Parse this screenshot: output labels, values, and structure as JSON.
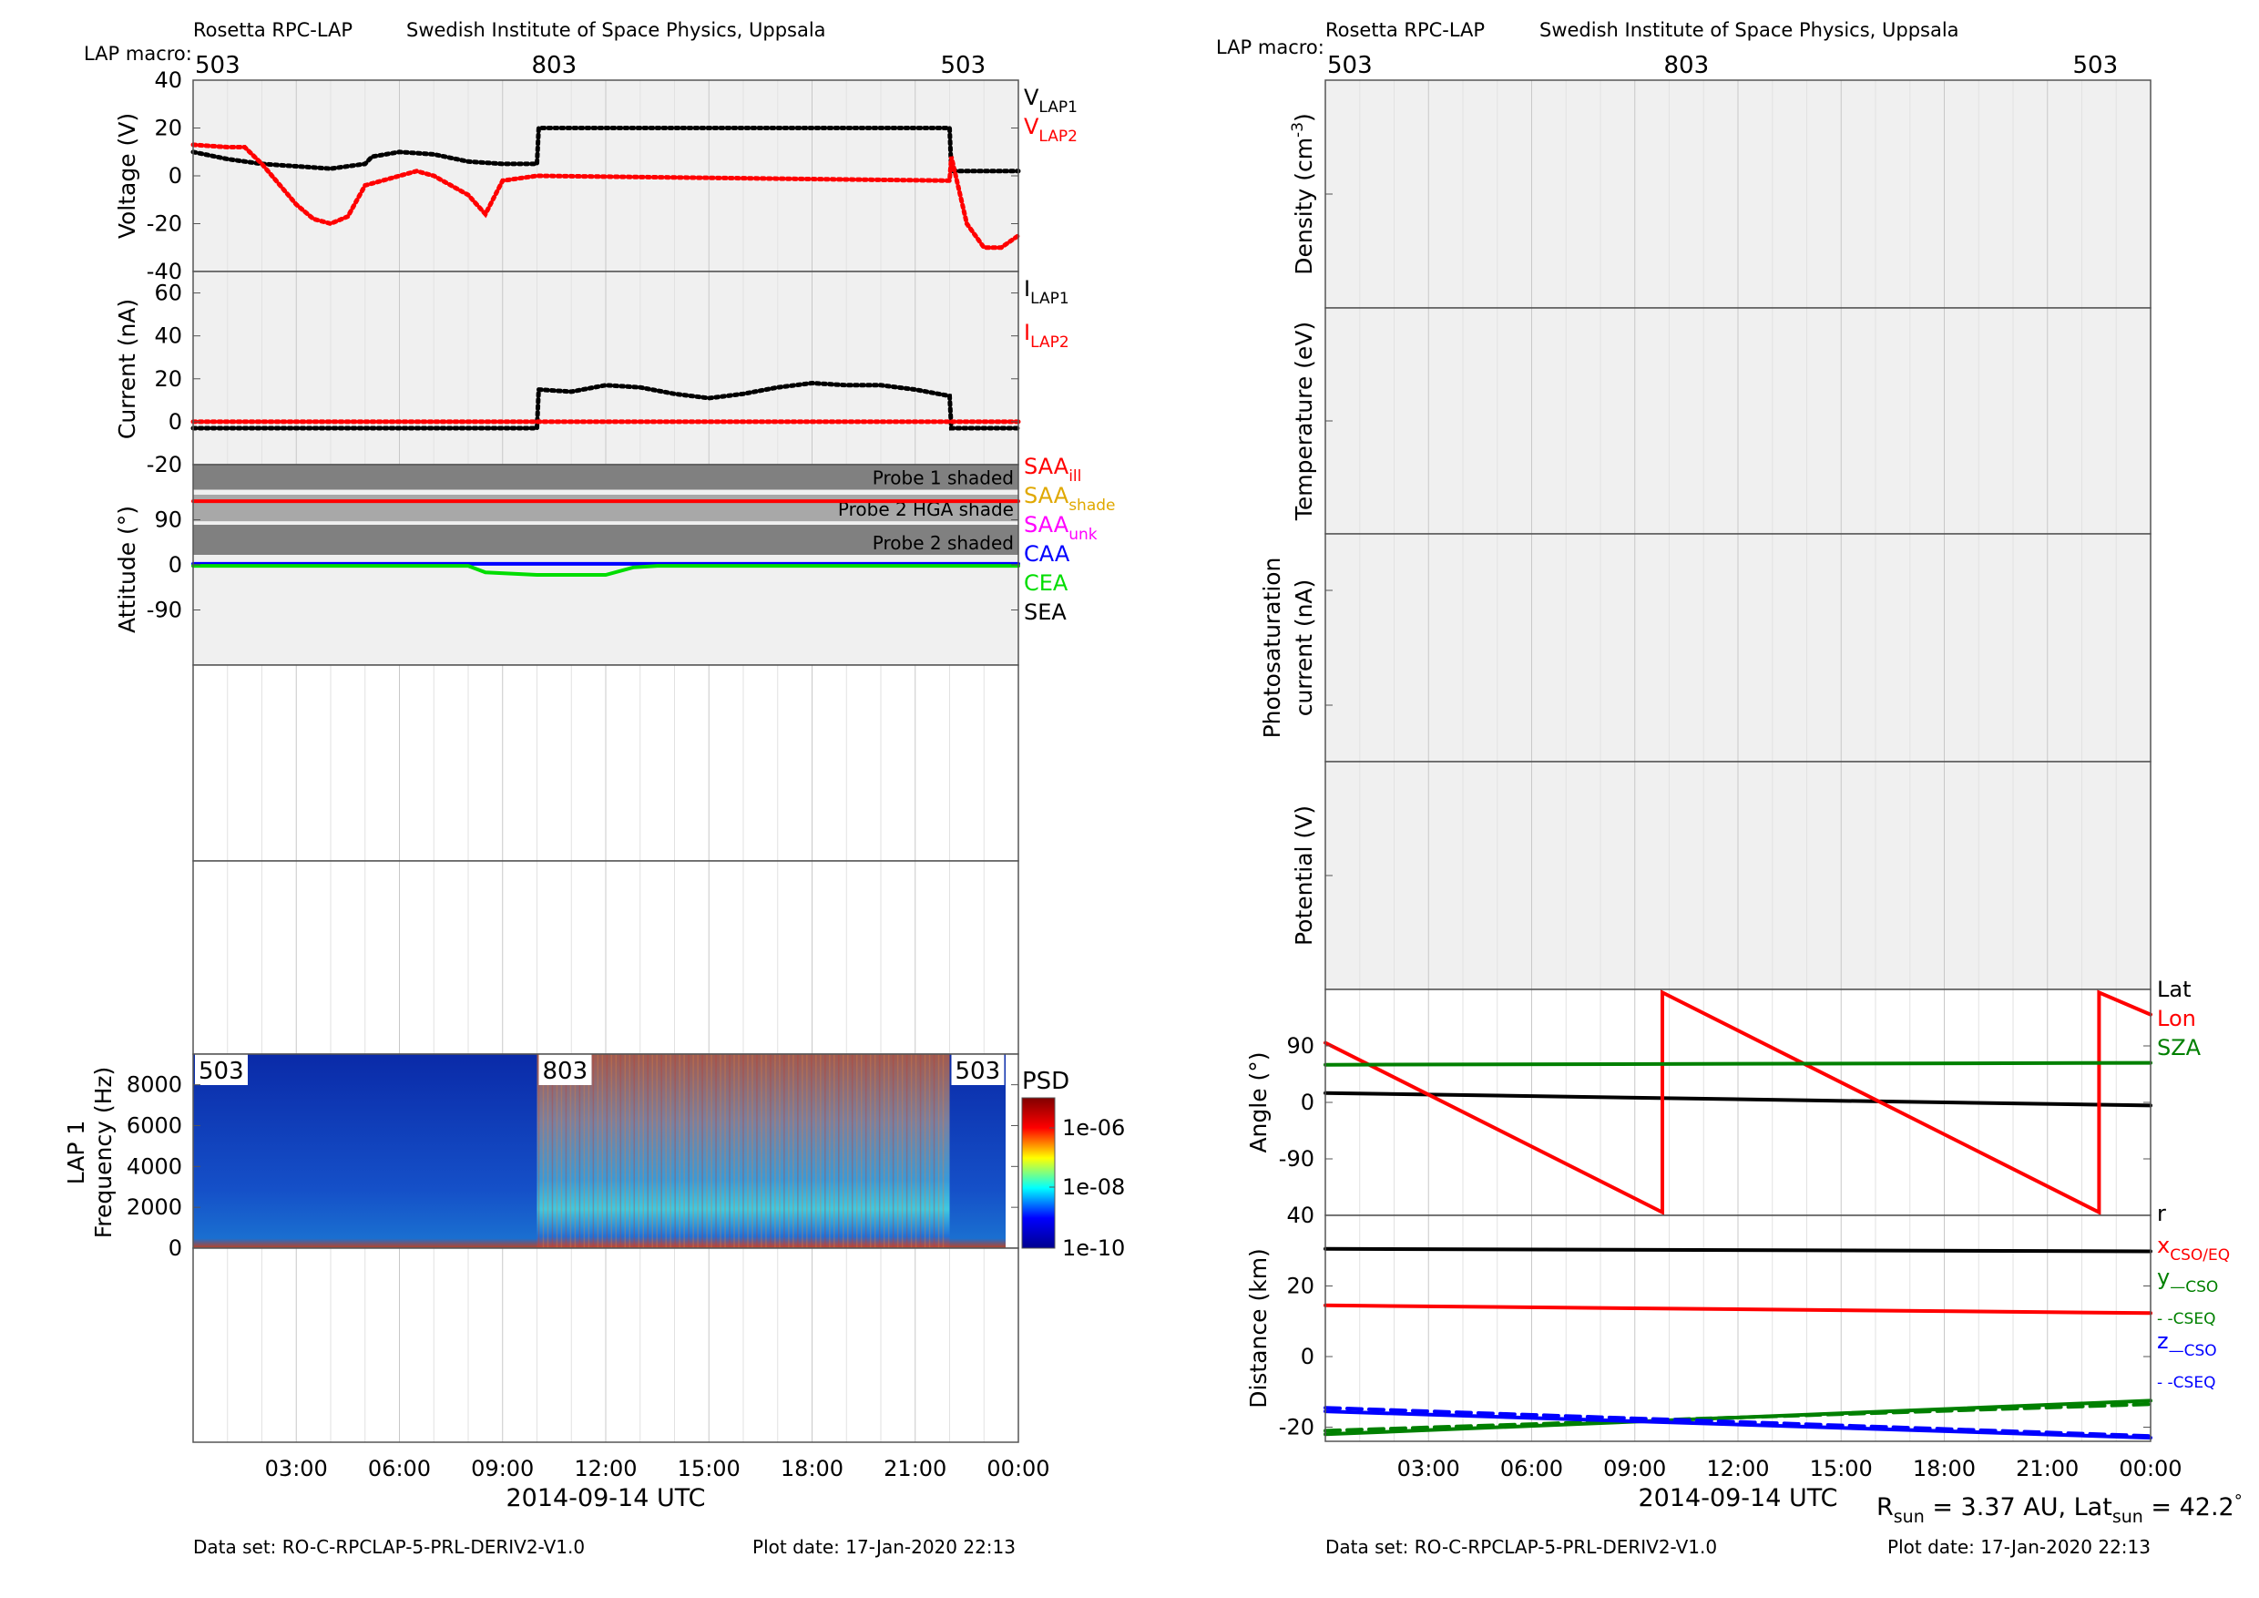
{
  "left": {
    "header": {
      "instrument": "Rosetta RPC-LAP",
      "institute": "Swedish Institute of Space Physics, Uppsala",
      "macro_label": "LAP macro:",
      "macros": [
        {
          "t": 0,
          "label": "503"
        },
        {
          "t": 10,
          "label": "803"
        },
        {
          "t": 22,
          "label": "503"
        }
      ]
    },
    "voltage": {
      "ylabel": "Voltage (V)",
      "ylim": [
        -40,
        40
      ],
      "yticks": [
        -40,
        -20,
        0,
        20,
        40
      ],
      "legend": [
        {
          "main": "V",
          "sub": "LAP1",
          "color": "#000000"
        },
        {
          "main": "V",
          "sub": "LAP2",
          "color": "#ff0000"
        }
      ],
      "series": [
        {
          "name": "VLAP1",
          "color": "#000000",
          "x": [
            0,
            1,
            2,
            3,
            4,
            5,
            5.2,
            6,
            7,
            8,
            9,
            10,
            10.05,
            22,
            22.05,
            23,
            24
          ],
          "y": [
            10,
            7,
            5,
            4,
            3,
            5,
            8,
            10,
            9,
            6,
            5,
            5,
            20,
            20,
            2,
            2,
            2
          ]
        },
        {
          "name": "VLAP2",
          "color": "#ff0000",
          "x": [
            0,
            1,
            1.5,
            2,
            3,
            3.5,
            4,
            4.5,
            5,
            5.5,
            6,
            6.5,
            7,
            8,
            8.5,
            9,
            10,
            22,
            22.05,
            22.5,
            23,
            23.5,
            24
          ],
          "y": [
            13,
            12,
            12,
            5,
            -12,
            -18,
            -20,
            -17,
            -4,
            -2,
            0,
            2,
            0,
            -8,
            -16,
            -2,
            0,
            -2,
            8,
            -20,
            -30,
            -30,
            -25
          ]
        }
      ]
    },
    "current": {
      "ylabel": "Current (nA)",
      "ylim": [
        -20,
        70
      ],
      "yticks": [
        -20,
        0,
        20,
        40,
        60
      ],
      "legend": [
        {
          "main": "I",
          "sub": "LAP1",
          "color": "#000000"
        },
        {
          "main": "I",
          "sub": "LAP2",
          "color": "#ff0000"
        }
      ],
      "series": [
        {
          "name": "ILAP1",
          "color": "#000000",
          "x": [
            0,
            10,
            10.05,
            11,
            12,
            13,
            14,
            15,
            16,
            17,
            18,
            19,
            20,
            21,
            22,
            22.05,
            24
          ],
          "y": [
            -3,
            -3,
            15,
            14,
            17,
            16,
            13,
            11,
            13,
            16,
            18,
            17,
            17,
            15,
            12,
            -3,
            -3
          ]
        },
        {
          "name": "ILAP2",
          "color": "#ff0000",
          "x": [
            0,
            10,
            22,
            24
          ],
          "y": [
            0,
            0,
            0,
            0
          ]
        }
      ]
    },
    "attitude": {
      "ylabel": "Attitude (°)",
      "ylim": [
        -200,
        200
      ],
      "yticks": [
        -90,
        0,
        90
      ],
      "bands": [
        {
          "y0": 150,
          "y1": 200,
          "label": "Probe 1 shaded",
          "color": "#808080"
        },
        {
          "y0": 87,
          "y1": 140,
          "label": "Probe 2 HGA shade",
          "color": "#a8a8a8"
        },
        {
          "y0": 20,
          "y1": 80,
          "label": "Probe 2 shaded",
          "color": "#808080"
        }
      ],
      "legend": [
        {
          "main": "SAA",
          "sub": "ill",
          "color": "#ff0000"
        },
        {
          "main": "SAA",
          "sub": "shade",
          "color": "#e0a800"
        },
        {
          "main": "SAA",
          "sub": "unk",
          "color": "#ff00ff"
        },
        {
          "main": "CAA",
          "sub": "",
          "color": "#0000ff"
        },
        {
          "main": "CEA",
          "sub": "",
          "color": "#00dd00"
        },
        {
          "main": "SEA",
          "sub": "",
          "color": "#000000"
        }
      ],
      "series": [
        {
          "name": "SAAill",
          "color": "#ff0000",
          "x": [
            0,
            24
          ],
          "y": [
            127,
            127
          ]
        },
        {
          "name": "CAA",
          "color": "#0000ff",
          "x": [
            0,
            24
          ],
          "y": [
            2,
            2
          ]
        },
        {
          "name": "CEA",
          "color": "#00dd00",
          "x": [
            0,
            8,
            8.5,
            10,
            12,
            12.8,
            13.5,
            24
          ],
          "y": [
            -2,
            -2,
            -15,
            -20,
            -20,
            -5,
            -2,
            -2
          ]
        }
      ]
    },
    "spectrogram": {
      "ylabel": "Frequency (Hz)",
      "panel_label": "LAP 1",
      "ylim": [
        0,
        9500
      ],
      "yticks": [
        0,
        2000,
        4000,
        6000,
        8000
      ],
      "colorbar_title": "PSD",
      "colorbar_ticks": [
        "1e-06",
        "1e-08",
        "1e-10"
      ],
      "segments": [
        {
          "t0": 0,
          "t1": 10,
          "label": "503"
        },
        {
          "t0": 10,
          "t1": 22,
          "label": "803"
        },
        {
          "t0": 22,
          "t1": 24,
          "label": "503"
        }
      ]
    },
    "xaxis": {
      "ticks": [
        "03:00",
        "06:00",
        "09:00",
        "12:00",
        "15:00",
        "18:00",
        "21:00",
        "00:00"
      ],
      "xlabel": "2014-09-14 UTC"
    },
    "footer": {
      "dataset": "Data set: RO-C-RPCLAP-5-PRL-DERIV2-V1.0",
      "plotdate": "Plot date: 17-Jan-2020 22:13"
    }
  },
  "right": {
    "header": {
      "instrument": "Rosetta RPC-LAP",
      "institute": "Swedish Institute of Space Physics, Uppsala",
      "macro_label": "LAP macro:",
      "macros": [
        {
          "t": 0,
          "label": "503"
        },
        {
          "t": 10,
          "label": "803"
        },
        {
          "t": 22,
          "label": "503"
        }
      ]
    },
    "density": {
      "ylabel": "Density (cm-3)",
      "ylabel_main": "Density (cm",
      "ylabel_sup": "-3",
      "ylabel_end": ")"
    },
    "temperature": {
      "ylabel": "Temperature (eV)"
    },
    "photosat": {
      "ylabel_line1": "Photosaturation",
      "ylabel_line2": "current (nA)"
    },
    "potential": {
      "ylabel": "Potential (V)"
    },
    "angle": {
      "ylabel": "Angle (°)",
      "ylim": [
        -180,
        180
      ],
      "yticks": [
        -90,
        0,
        90
      ],
      "ytick_labels": [
        "-90",
        "0",
        "90"
      ],
      "legend": [
        {
          "name": "Lat",
          "color": "#000000"
        },
        {
          "name": "Lon",
          "color": "#ff0000"
        },
        {
          "name": "SZA",
          "color": "#008000"
        }
      ],
      "series": [
        {
          "name": "Lat",
          "color": "#000000",
          "x": [
            0,
            24
          ],
          "y": [
            15,
            -5
          ]
        },
        {
          "name": "Lon",
          "color": "#ff0000",
          "x": [
            0,
            9.8,
            9.8,
            22.5,
            22.5,
            24
          ],
          "y": [
            95,
            -175,
            175,
            -175,
            175,
            140
          ]
        },
        {
          "name": "SZA",
          "color": "#008000",
          "x": [
            0,
            24
          ],
          "y": [
            60,
            63
          ]
        }
      ]
    },
    "distance": {
      "ylabel": "Distance (km)",
      "ylim": [
        -24,
        40
      ],
      "yticks": [
        -20,
        0,
        20,
        40
      ],
      "legend": [
        {
          "main": "r",
          "sub": "",
          "color": "#000000"
        },
        {
          "main": "x",
          "sub": "CSO/EQ",
          "color": "#ff0000"
        },
        {
          "main": "y",
          "sub": "—CSO",
          "color": "#008000"
        },
        {
          "main": "",
          "sub": "- -CSEQ",
          "color": "#008000"
        },
        {
          "main": "z",
          "sub": "—CSO",
          "color": "#0000ff"
        },
        {
          "main": "",
          "sub": "- -CSEQ",
          "color": "#0000ff"
        }
      ],
      "series": [
        {
          "name": "r",
          "color": "#000000",
          "dash": false,
          "x": [
            0,
            24
          ],
          "y": [
            30.5,
            29.8
          ]
        },
        {
          "name": "x",
          "color": "#ff0000",
          "dash": false,
          "x": [
            0,
            24
          ],
          "y": [
            14.5,
            12.3
          ]
        },
        {
          "name": "y CSO",
          "color": "#008000",
          "dash": false,
          "x": [
            0,
            24
          ],
          "y": [
            -22,
            -12.5
          ]
        },
        {
          "name": "y CSEQ",
          "color": "#008000",
          "dash": true,
          "x": [
            0,
            24
          ],
          "y": [
            -21,
            -13.5
          ]
        },
        {
          "name": "z CSO",
          "color": "#0000ff",
          "dash": false,
          "x": [
            0,
            24
          ],
          "y": [
            -15.5,
            -23
          ]
        },
        {
          "name": "z CSEQ",
          "color": "#0000ff",
          "dash": true,
          "x": [
            0,
            24
          ],
          "y": [
            -14.5,
            -22.5
          ]
        }
      ]
    },
    "xaxis": {
      "ticks": [
        "03:00",
        "06:00",
        "09:00",
        "12:00",
        "15:00",
        "18:00",
        "21:00",
        "00:00"
      ],
      "xlabel": "2014-09-14 UTC"
    },
    "rsun": {
      "r_main": "R",
      "r_sub": "sun",
      "r_val": " = 3.37 AU, Lat",
      "lat_sub": "sun",
      "lat_val": " = 42.2",
      "deg": "°"
    },
    "footer": {
      "dataset": "Data set: RO-C-RPCLAP-5-PRL-DERIV2-V1.0",
      "plotdate": "Plot date: 17-Jan-2020 22:13"
    }
  },
  "chart_data": [
    {
      "type": "line",
      "title": "Rosetta RPC-LAP",
      "xlabel": "2014-09-14 UTC",
      "ylabel": "Voltage (V)",
      "ylim": [
        -40,
        40
      ],
      "x_hours": [
        0,
        1,
        2,
        3,
        4,
        5,
        6,
        7,
        8,
        9,
        10,
        22,
        23,
        24
      ],
      "series": [
        {
          "name": "VLAP1",
          "values": [
            10,
            7,
            5,
            4,
            3,
            5,
            10,
            9,
            6,
            5,
            20,
            20,
            2,
            2
          ]
        },
        {
          "name": "VLAP2",
          "values": [
            13,
            12,
            5,
            -12,
            -20,
            -4,
            0,
            0,
            -8,
            -2,
            0,
            8,
            -30,
            -25
          ]
        }
      ]
    },
    {
      "type": "line",
      "ylabel": "Current (nA)",
      "ylim": [
        -20,
        70
      ],
      "series": [
        {
          "name": "ILAP1",
          "x_hours": [
            0,
            10,
            12,
            15,
            18,
            22,
            24
          ],
          "values": [
            -3,
            15,
            17,
            11,
            18,
            12,
            -3
          ]
        },
        {
          "name": "ILAP2",
          "x_hours": [
            0,
            24
          ],
          "values": [
            0,
            0
          ]
        }
      ]
    },
    {
      "type": "line",
      "ylabel": "Angle (°)",
      "ylim": [
        -180,
        180
      ],
      "series": [
        {
          "name": "Lat",
          "x_hours": [
            0,
            24
          ],
          "values": [
            15,
            -5
          ]
        },
        {
          "name": "Lon",
          "x_hours": [
            0,
            9.8,
            9.8,
            22.5,
            22.5,
            24
          ],
          "values": [
            95,
            -175,
            175,
            -175,
            175,
            140
          ]
        },
        {
          "name": "SZA",
          "x_hours": [
            0,
            24
          ],
          "values": [
            60,
            63
          ]
        }
      ]
    },
    {
      "type": "line",
      "ylabel": "Distance (km)",
      "ylim": [
        -24,
        40
      ],
      "series": [
        {
          "name": "r",
          "x_hours": [
            0,
            24
          ],
          "values": [
            30.5,
            29.8
          ]
        },
        {
          "name": "x",
          "x_hours": [
            0,
            24
          ],
          "values": [
            14.5,
            12.3
          ]
        },
        {
          "name": "y",
          "x_hours": [
            0,
            24
          ],
          "values": [
            -22,
            -12.5
          ]
        },
        {
          "name": "z",
          "x_hours": [
            0,
            24
          ],
          "values": [
            -15.5,
            -23
          ]
        }
      ]
    }
  ]
}
